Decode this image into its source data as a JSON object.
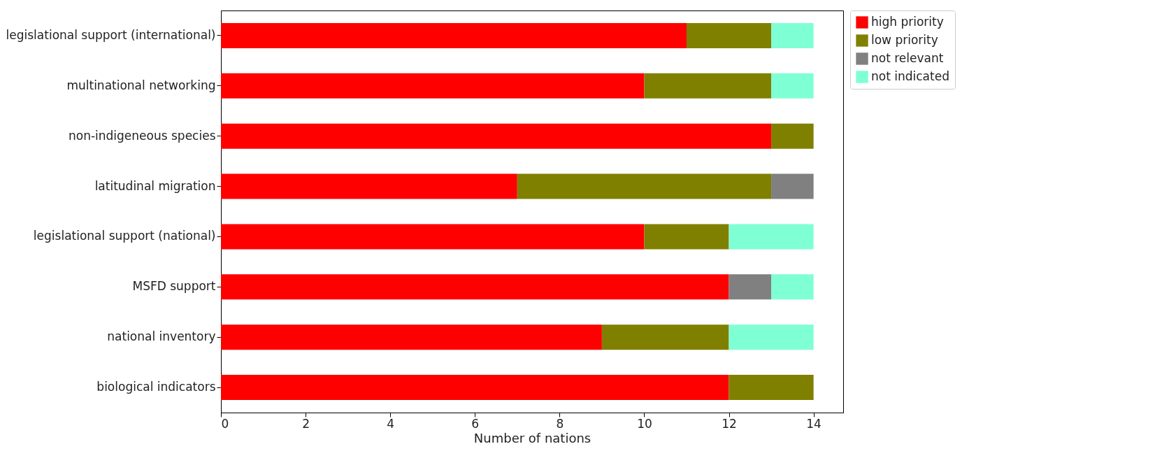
{
  "chart_data": {
    "type": "bar",
    "orientation": "horizontal",
    "stacked": true,
    "xlabel": "Number of nations",
    "categories": [
      "legislational support (international)",
      "multinational networking",
      "non-indigeneous species",
      "latitudinal migration",
      "legislational support (national)",
      "MSFD support",
      "national inventory",
      "biological indicators"
    ],
    "series": [
      {
        "name": "high priority",
        "color": "#ff0000",
        "values": [
          11,
          10,
          13,
          7,
          10,
          12,
          9,
          12
        ]
      },
      {
        "name": "low priority",
        "color": "#808000",
        "values": [
          2,
          3,
          1,
          6,
          2,
          0,
          3,
          2
        ]
      },
      {
        "name": "not relevant",
        "color": "#808080",
        "values": [
          0,
          0,
          0,
          1,
          0,
          1,
          0,
          0
        ]
      },
      {
        "name": "not indicated",
        "color": "#7fffd4",
        "values": [
          1,
          1,
          0,
          0,
          2,
          1,
          2,
          0
        ]
      }
    ],
    "xlim": [
      0,
      14.7
    ],
    "xticks": [
      0,
      2,
      4,
      6,
      8,
      10,
      12,
      14
    ],
    "grid": false,
    "legend": "top right"
  }
}
